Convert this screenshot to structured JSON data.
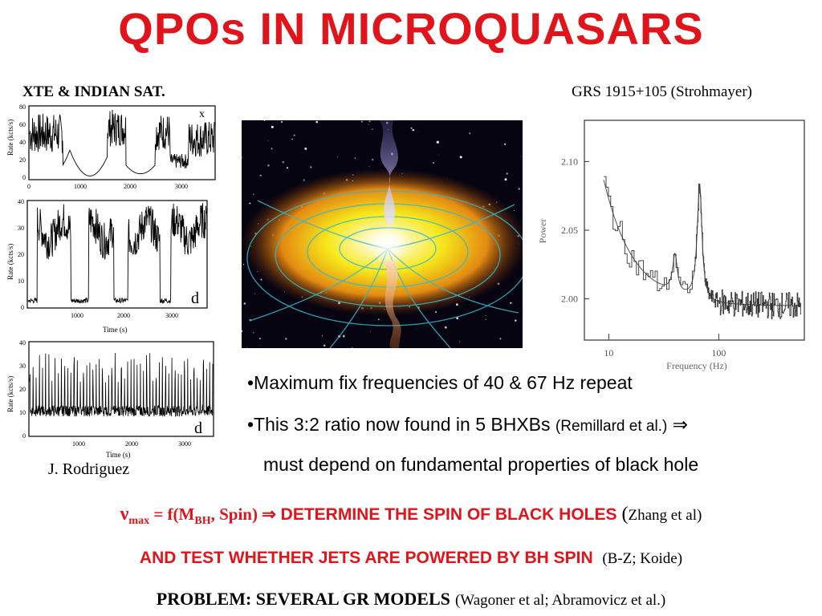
{
  "title": "QPOs IN MICROQUASARS",
  "label_left": "XTE & INDIAN SAT.",
  "label_right": "GRS 1915+105 (Strohmayer)",
  "credit": "J. Rodriguez",
  "lightcurves": {
    "panel1": {
      "ylabel": "Rate (kcts/s)",
      "corner": "x",
      "yticks": [
        "0",
        "20",
        "40",
        "60",
        "80"
      ],
      "xticks": [
        "0",
        "1000",
        "2000",
        "3000"
      ]
    },
    "panel2": {
      "ylabel": "Rate (kcts/s)",
      "corner": "d",
      "yticks": [
        "0",
        "10",
        "20",
        "30",
        "40"
      ],
      "xticks": [
        "1000",
        "2000",
        "3000"
      ],
      "xlabel": "Time (s)"
    },
    "panel3": {
      "ylabel": "Rate (kcts/s)",
      "corner": "d",
      "yticks": [
        "0",
        "10",
        "20",
        "30",
        "40"
      ],
      "xticks": [
        "1000",
        "2000",
        "3000"
      ],
      "xlabel": "Time (s)"
    }
  },
  "chart_data": {
    "type": "line",
    "xlabel": "Frequency (Hz)",
    "ylabel": "Power",
    "xscale": "log",
    "xticks": [
      "10",
      "100"
    ],
    "yticks": [
      "2.00",
      "2.05",
      "2.10"
    ],
    "xlim": [
      6,
      600
    ],
    "ylim": [
      1.97,
      2.13
    ],
    "peaks_hz": [
      40,
      67
    ]
  },
  "bullets": {
    "b1": "•Maximum fix frequencies of 40 & 67 Hz repeat",
    "b2_main": "•This 3:2 ratio now found in 5 BHXBs",
    "b2_cite": "(Remillard et al.)",
    "b2_arrow": "⇒",
    "b3": "must depend on fundamental properties of black hole"
  },
  "conclusions": {
    "nu": "ν",
    "max": "max",
    "eq": " = f(M",
    "bh": "BH",
    "spin": ", Spin) ",
    "arrow": "⇒",
    "determine": " DETERMINE THE SPIN OF BLACK HOLES",
    "paren": " (",
    "zhang": "Zhang et al)",
    "line2": "AND TEST WHETHER JETS ARE POWERED BY BH SPIN",
    "line2_cite": "(B-Z; Koide)",
    "line3": "PROBLEM: SEVERAL GR MODELS",
    "line3_cite": "(Wagoner et al; Abramovicz et al.)"
  }
}
